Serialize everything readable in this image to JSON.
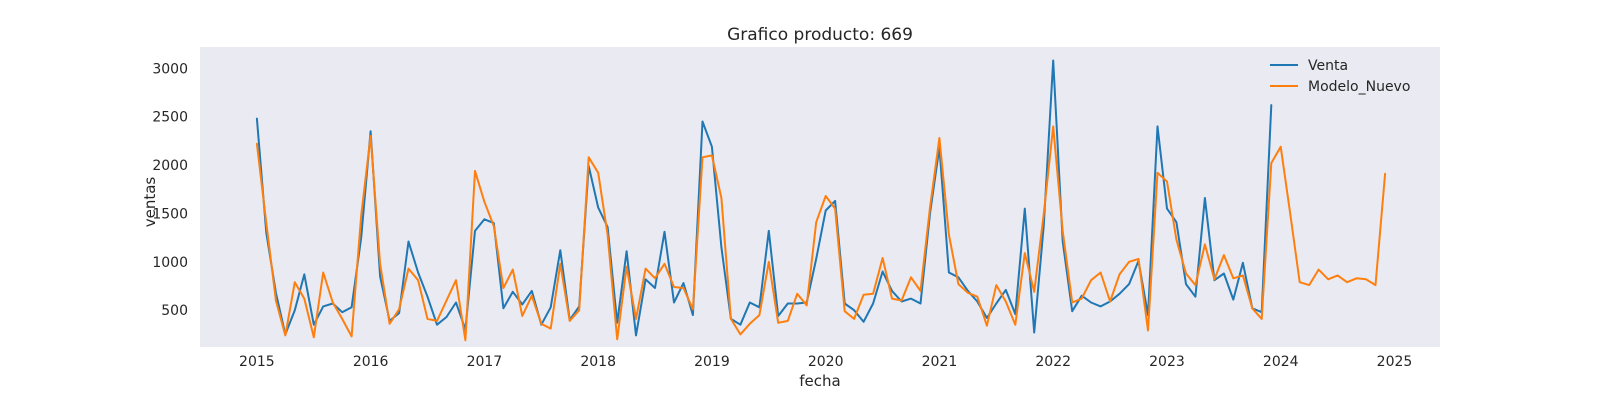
{
  "chart_data": {
    "type": "line",
    "title": "Grafico producto: 669",
    "xlabel": "fecha",
    "ylabel": "ventas",
    "xlim": [
      2014.5,
      2025.4
    ],
    "ylim": [
      120,
      3220
    ],
    "xticks": [
      2015,
      2016,
      2017,
      2018,
      2019,
      2020,
      2021,
      2022,
      2023,
      2024,
      2025
    ],
    "xtick_labels": [
      "2015",
      "2016",
      "2017",
      "2018",
      "2019",
      "2020",
      "2021",
      "2022",
      "2023",
      "2024",
      "2025"
    ],
    "yticks": [
      500,
      1000,
      1500,
      2000,
      2500,
      3000
    ],
    "ytick_labels": [
      "500",
      "1000",
      "1500",
      "2000",
      "2500",
      "3000"
    ],
    "grid": false,
    "background": "#eaeaf2",
    "legend_position": "top-right",
    "series": [
      {
        "name": "Venta",
        "color": "#1f77b4",
        "x": [
          2015.0,
          2015.083,
          2015.167,
          2015.25,
          2015.333,
          2015.417,
          2015.5,
          2015.583,
          2015.667,
          2015.75,
          2015.833,
          2015.917,
          2016.0,
          2016.083,
          2016.167,
          2016.25,
          2016.333,
          2016.417,
          2016.5,
          2016.583,
          2016.667,
          2016.75,
          2016.833,
          2016.917,
          2017.0,
          2017.083,
          2017.167,
          2017.25,
          2017.333,
          2017.417,
          2017.5,
          2017.583,
          2017.667,
          2017.75,
          2017.833,
          2017.917,
          2018.0,
          2018.083,
          2018.167,
          2018.25,
          2018.333,
          2018.417,
          2018.5,
          2018.583,
          2018.667,
          2018.75,
          2018.833,
          2018.917,
          2019.0,
          2019.083,
          2019.167,
          2019.25,
          2019.333,
          2019.417,
          2019.5,
          2019.583,
          2019.667,
          2019.75,
          2019.833,
          2019.917,
          2020.0,
          2020.083,
          2020.167,
          2020.25,
          2020.333,
          2020.417,
          2020.5,
          2020.583,
          2020.667,
          2020.75,
          2020.833,
          2020.917,
          2021.0,
          2021.083,
          2021.167,
          2021.25,
          2021.333,
          2021.417,
          2021.5,
          2021.583,
          2021.667,
          2021.75,
          2021.833,
          2021.917,
          2022.0,
          2022.083,
          2022.167,
          2022.25,
          2022.333,
          2022.417,
          2022.5,
          2022.583,
          2022.667,
          2022.75,
          2022.833,
          2022.917,
          2023.0,
          2023.083,
          2023.167,
          2023.25,
          2023.333,
          2023.417,
          2023.5,
          2023.583,
          2023.667,
          2023.75,
          2023.833,
          2023.917
        ],
        "y": [
          2480,
          1300,
          680,
          250,
          500,
          870,
          350,
          540,
          570,
          480,
          530,
          1250,
          2350,
          850,
          390,
          470,
          1210,
          890,
          640,
          350,
          430,
          580,
          300,
          1320,
          1440,
          1400,
          520,
          690,
          560,
          700,
          350,
          530,
          1120,
          400,
          540,
          1990,
          1560,
          1360,
          370,
          1110,
          240,
          820,
          730,
          1310,
          580,
          780,
          450,
          2450,
          2190,
          1150,
          410,
          350,
          580,
          530,
          1320,
          440,
          570,
          570,
          580,
          1030,
          1530,
          1630,
          570,
          500,
          380,
          570,
          900,
          700,
          590,
          620,
          570,
          1500,
          2180,
          890,
          840,
          700,
          590,
          420,
          570,
          710,
          460,
          1550,
          270,
          1380,
          3080,
          1210,
          490,
          650,
          580,
          540,
          590,
          670,
          770,
          1010,
          450,
          2400,
          1550,
          1410,
          770,
          640,
          1660,
          810,
          880,
          610,
          990,
          520,
          480,
          2620
        ]
      },
      {
        "name": "Modelo_Nuevo",
        "color": "#ff7f0e",
        "x": [
          2015.0,
          2015.083,
          2015.167,
          2015.25,
          2015.333,
          2015.417,
          2015.5,
          2015.583,
          2015.667,
          2015.75,
          2015.833,
          2015.917,
          2016.0,
          2016.083,
          2016.167,
          2016.25,
          2016.333,
          2016.417,
          2016.5,
          2016.583,
          2016.667,
          2016.75,
          2016.833,
          2016.917,
          2017.0,
          2017.083,
          2017.167,
          2017.25,
          2017.333,
          2017.417,
          2017.5,
          2017.583,
          2017.667,
          2017.75,
          2017.833,
          2017.917,
          2018.0,
          2018.083,
          2018.167,
          2018.25,
          2018.333,
          2018.417,
          2018.5,
          2018.583,
          2018.667,
          2018.75,
          2018.833,
          2018.917,
          2019.0,
          2019.083,
          2019.167,
          2019.25,
          2019.333,
          2019.417,
          2019.5,
          2019.583,
          2019.667,
          2019.75,
          2019.833,
          2019.917,
          2020.0,
          2020.083,
          2020.167,
          2020.25,
          2020.333,
          2020.417,
          2020.5,
          2020.583,
          2020.667,
          2020.75,
          2020.833,
          2020.917,
          2021.0,
          2021.083,
          2021.167,
          2021.25,
          2021.333,
          2021.417,
          2021.5,
          2021.583,
          2021.667,
          2021.75,
          2021.833,
          2021.917,
          2022.0,
          2022.083,
          2022.167,
          2022.25,
          2022.333,
          2022.417,
          2022.5,
          2022.583,
          2022.667,
          2022.75,
          2022.833,
          2022.917,
          2023.0,
          2023.083,
          2023.167,
          2023.25,
          2023.333,
          2023.417,
          2023.5,
          2023.583,
          2023.667,
          2023.75,
          2023.833,
          2023.917,
          2024.0,
          2024.083,
          2024.167,
          2024.25,
          2024.333,
          2024.417,
          2024.5,
          2024.583,
          2024.667,
          2024.75,
          2024.833,
          2024.917
        ],
        "y": [
          2220,
          1400,
          600,
          240,
          790,
          620,
          220,
          890,
          580,
          410,
          230,
          1480,
          2300,
          980,
          360,
          510,
          930,
          810,
          410,
          390,
          600,
          810,
          190,
          1940,
          1620,
          1370,
          730,
          920,
          440,
          650,
          360,
          310,
          980,
          390,
          500,
          2080,
          1920,
          1280,
          200,
          950,
          410,
          930,
          830,
          980,
          740,
          730,
          510,
          2080,
          2100,
          1660,
          410,
          250,
          360,
          450,
          1000,
          370,
          390,
          670,
          550,
          1410,
          1680,
          1550,
          490,
          410,
          660,
          670,
          1040,
          620,
          600,
          840,
          700,
          1560,
          2280,
          1280,
          770,
          680,
          640,
          340,
          760,
          590,
          350,
          1090,
          690,
          1500,
          2400,
          1320,
          580,
          620,
          810,
          890,
          590,
          870,
          1000,
          1030,
          290,
          1920,
          1830,
          1230,
          880,
          760,
          1180,
          820,
          1070,
          830,
          860,
          520,
          410,
          2020,
          2190,
          1500,
          790,
          760,
          920,
          820,
          860,
          790,
          830,
          820,
          760,
          1910
        ]
      }
    ]
  }
}
